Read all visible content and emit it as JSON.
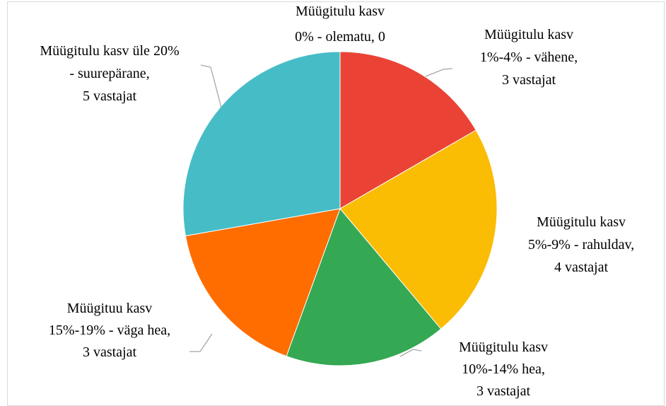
{
  "chart_data": {
    "type": "pie",
    "categories": [
      [
        "Müügitulu kasv",
        "0% - olematu, 0"
      ],
      [
        "Müügitulu kasv",
        "1%-4% - vähene,",
        "3 vastajat"
      ],
      [
        "Müügitulu kasv",
        "5%-9% - rahuldav,",
        "4 vastajat"
      ],
      [
        "Müügitulu kasv",
        "10%-14% hea,",
        "3 vastajat"
      ],
      [
        "Müügituu kasv",
        "15%-19% - väga hea,",
        "3 vastajat"
      ],
      [
        "Müügitulu kasv  üle 20%",
        "- suurepärane,",
        "5 vastajat"
      ]
    ],
    "values": [
      0,
      3,
      4,
      3,
      3,
      5
    ],
    "colors": [
      "#ea4335",
      "#ea4335",
      "#fbbc04",
      "#34a853",
      "#ff6d01",
      "#46bdc6"
    ]
  }
}
